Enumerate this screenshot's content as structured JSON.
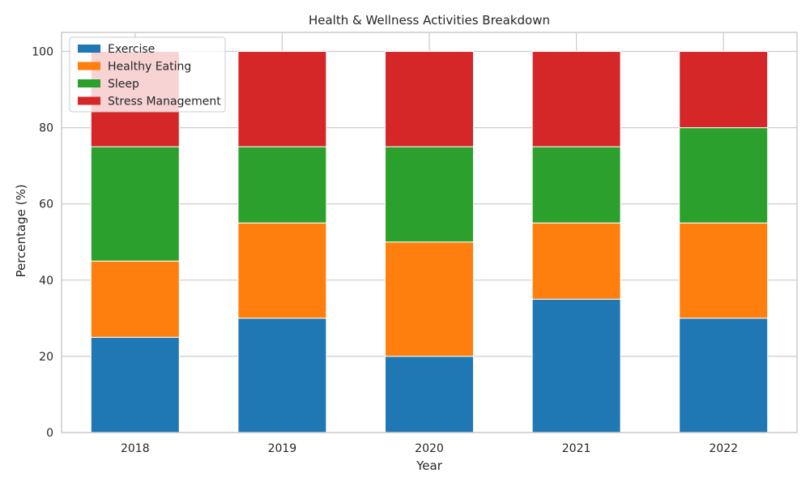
{
  "chart_data": {
    "type": "bar",
    "stacked": true,
    "title": "Health & Wellness Activities Breakdown",
    "xlabel": "Year",
    "ylabel": "Percentage (%)",
    "categories": [
      "2018",
      "2019",
      "2020",
      "2021",
      "2022"
    ],
    "ylim": [
      0,
      105
    ],
    "yticks": [
      0,
      20,
      40,
      60,
      80,
      100
    ],
    "grid": true,
    "legend_position": "top-left",
    "series": [
      {
        "name": "Exercise",
        "color": "#1f77b4",
        "values": [
          25,
          30,
          20,
          35,
          30
        ]
      },
      {
        "name": "Healthy Eating",
        "color": "#ff7f0e",
        "values": [
          20,
          25,
          30,
          20,
          25
        ]
      },
      {
        "name": "Sleep",
        "color": "#2ca02c",
        "values": [
          30,
          20,
          25,
          20,
          25
        ]
      },
      {
        "name": "Stress Management",
        "color": "#d62728",
        "values": [
          25,
          25,
          25,
          25,
          20
        ]
      }
    ]
  }
}
